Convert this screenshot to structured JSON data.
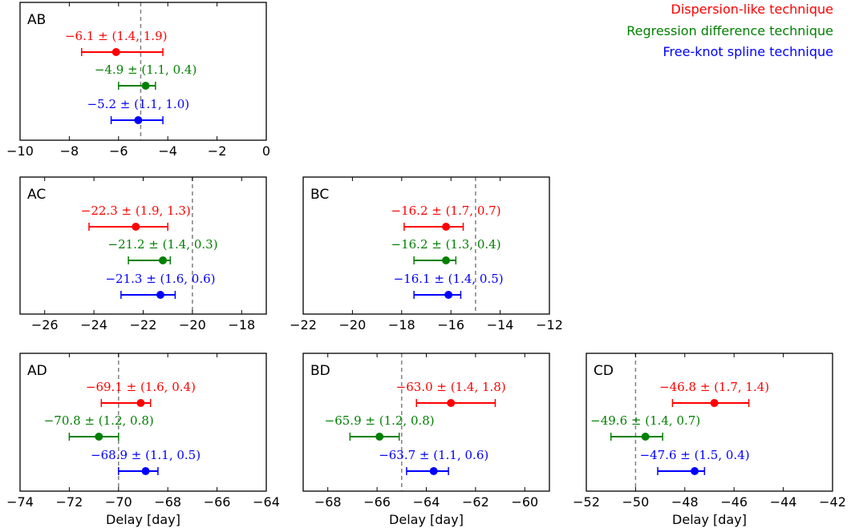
{
  "legend": [
    {
      "label": "Dispersion-like technique",
      "color": "#ff0000"
    },
    {
      "label": "Regression difference technique",
      "color": "#008000"
    },
    {
      "label": "Free-knot spline technique",
      "color": "#0000ff"
    }
  ],
  "chart_data": [
    {
      "type": "errorbar",
      "panel": "AB",
      "xlim": [
        -10,
        0
      ],
      "ticks": [
        -10,
        -8,
        -6,
        -4,
        -2,
        0
      ],
      "reference_x": -5.1,
      "xlabel": "",
      "series": [
        {
          "value": -6.1,
          "err_minus": 1.4,
          "err_plus": 1.9,
          "label": "−6.1 ± (1.4, 1.9)"
        },
        {
          "value": -4.9,
          "err_minus": 1.1,
          "err_plus": 0.4,
          "label": "−4.9 ± (1.1, 0.4)"
        },
        {
          "value": -5.2,
          "err_minus": 1.1,
          "err_plus": 1.0,
          "label": "−5.2 ± (1.1, 1.0)"
        }
      ]
    },
    {
      "type": "errorbar",
      "panel": "AC",
      "xlim": [
        -27,
        -17
      ],
      "ticks": [
        -26,
        -24,
        -22,
        -20,
        -18
      ],
      "reference_x": -20.0,
      "xlabel": "",
      "series": [
        {
          "value": -22.3,
          "err_minus": 1.9,
          "err_plus": 1.3,
          "label": "−22.3 ± (1.9, 1.3)"
        },
        {
          "value": -21.2,
          "err_minus": 1.4,
          "err_plus": 0.3,
          "label": "−21.2 ± (1.4, 0.3)"
        },
        {
          "value": -21.3,
          "err_minus": 1.6,
          "err_plus": 0.6,
          "label": "−21.3 ± (1.6, 0.6)"
        }
      ]
    },
    {
      "type": "errorbar",
      "panel": "BC",
      "xlim": [
        -22,
        -12
      ],
      "ticks": [
        -22,
        -20,
        -18,
        -16,
        -14,
        -12
      ],
      "reference_x": -15.0,
      "xlabel": "",
      "series": [
        {
          "value": -16.2,
          "err_minus": 1.7,
          "err_plus": 0.7,
          "label": "−16.2 ± (1.7, 0.7)"
        },
        {
          "value": -16.2,
          "err_minus": 1.3,
          "err_plus": 0.4,
          "label": "−16.2 ± (1.3, 0.4)"
        },
        {
          "value": -16.1,
          "err_minus": 1.4,
          "err_plus": 0.5,
          "label": "−16.1 ± (1.4, 0.5)"
        }
      ]
    },
    {
      "type": "errorbar",
      "panel": "AD",
      "xlim": [
        -74,
        -64
      ],
      "ticks": [
        -74,
        -72,
        -70,
        -68,
        -66,
        -64
      ],
      "reference_x": -70.0,
      "xlabel": "Delay [day]",
      "series": [
        {
          "value": -69.1,
          "err_minus": 1.6,
          "err_plus": 0.4,
          "label": "−69.1 ± (1.6, 0.4)"
        },
        {
          "value": -70.8,
          "err_minus": 1.2,
          "err_plus": 0.8,
          "label": "−70.8 ± (1.2, 0.8)"
        },
        {
          "value": -68.9,
          "err_minus": 1.1,
          "err_plus": 0.5,
          "label": "−68.9 ± (1.1, 0.5)"
        }
      ]
    },
    {
      "type": "errorbar",
      "panel": "BD",
      "xlim": [
        -69,
        -59
      ],
      "ticks": [
        -68,
        -66,
        -64,
        -62,
        -60
      ],
      "reference_x": -65.0,
      "xlabel": "Delay [day]",
      "series": [
        {
          "value": -63.0,
          "err_minus": 1.4,
          "err_plus": 1.8,
          "label": "−63.0 ± (1.4, 1.8)"
        },
        {
          "value": -65.9,
          "err_minus": 1.2,
          "err_plus": 0.8,
          "label": "−65.9 ± (1.2, 0.8)"
        },
        {
          "value": -63.7,
          "err_minus": 1.1,
          "err_plus": 0.6,
          "label": "−63.7 ± (1.1, 0.6)"
        }
      ]
    },
    {
      "type": "errorbar",
      "panel": "CD",
      "xlim": [
        -52,
        -42
      ],
      "ticks": [
        -52,
        -50,
        -48,
        -46,
        -44,
        -42
      ],
      "reference_x": -50.0,
      "xlabel": "Delay [day]",
      "series": [
        {
          "value": -46.8,
          "err_minus": 1.7,
          "err_plus": 1.4,
          "label": "−46.8 ± (1.7, 1.4)"
        },
        {
          "value": -49.6,
          "err_minus": 1.4,
          "err_plus": 0.7,
          "label": "−49.6 ± (1.4, 0.7)"
        },
        {
          "value": -47.6,
          "err_minus": 1.5,
          "err_plus": 0.4,
          "label": "−47.6 ± (1.5, 0.4)"
        }
      ]
    }
  ]
}
